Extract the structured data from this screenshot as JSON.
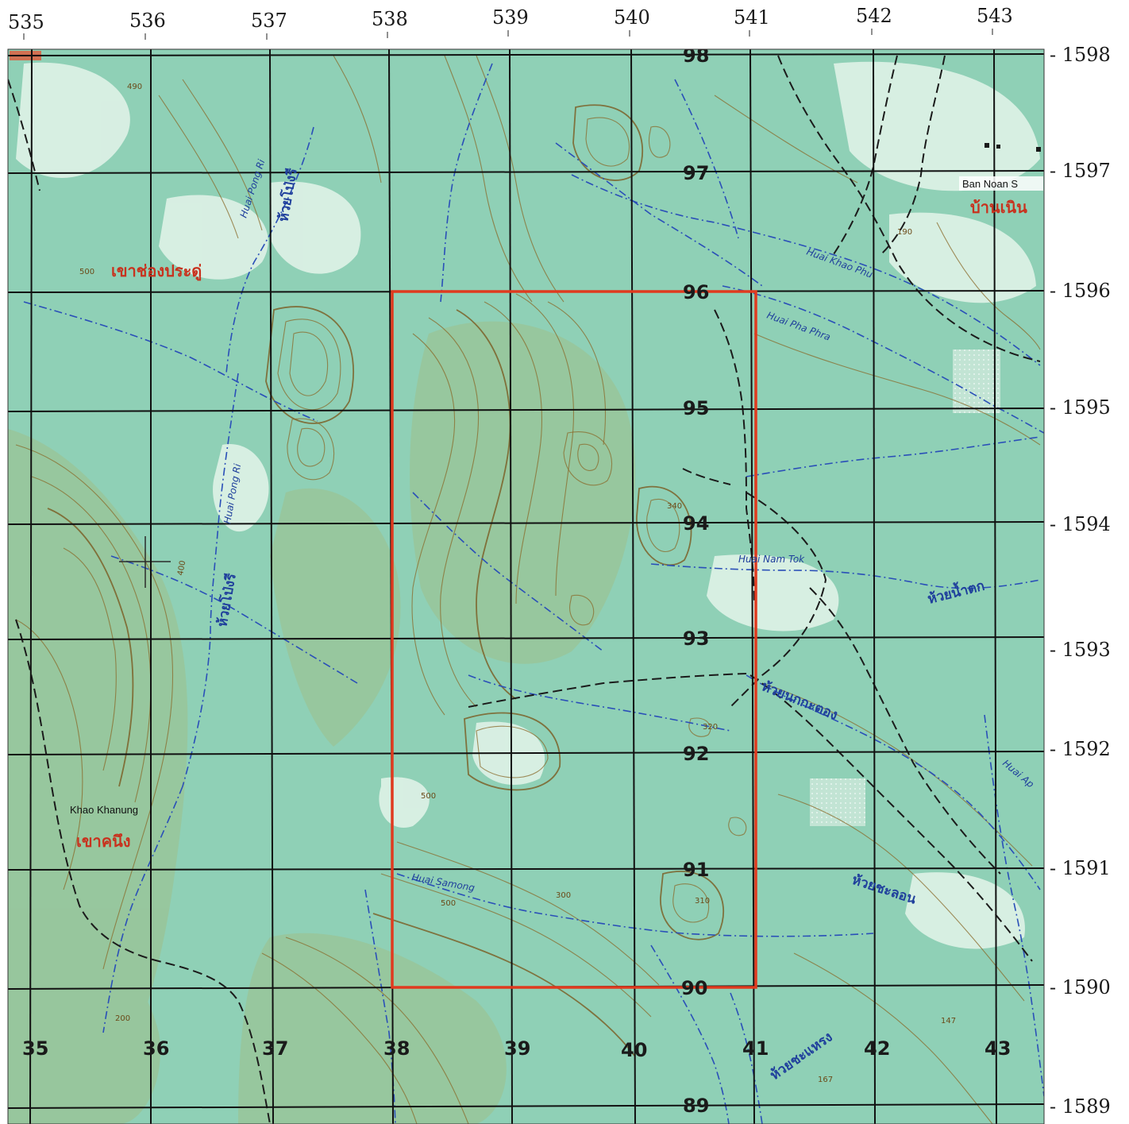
{
  "map": {
    "eastings_top": [
      "535",
      "536",
      "537",
      "538",
      "539",
      "540",
      "541",
      "542",
      "543"
    ],
    "eastings_inner": [
      "35",
      "36",
      "37",
      "38",
      "39",
      "40",
      "41",
      "42",
      "43"
    ],
    "northings_right": [
      "- 1598",
      "- 1597",
      "- 1596",
      "- 1595",
      "- 1594",
      "- 1593",
      "- 1592",
      "- 1591",
      "- 1590",
      "- 1589"
    ],
    "northings_inner": [
      "98",
      "97",
      "96",
      "95",
      "94",
      "93",
      "92",
      "91",
      "90",
      "89"
    ],
    "places": {
      "ban_noan_en": "Ban Noan S",
      "ban_noan_th": "บ้านเนิน",
      "khao_khanung_en": "Khao Khanung",
      "khao_khanung_th": "เขาคนึง",
      "nw_hill_th": "เขาช่องประดู่"
    },
    "streams": {
      "huai_pong_ri_top_en": "Huai Pong Ri",
      "huai_pong_ri_top_th": "ห้วยโป่งรี",
      "huai_pong_ri_mid_en": "Huai Pong Ri",
      "huai_pong_ri_mid_th": "ห้วยโป่งรี",
      "huai_khao_phu_en": "Huai Khao Phu",
      "huai_pha_phra_en": "Huai Pha Phra",
      "huai_nam_tok_en": "Huai Nam Tok",
      "huai_nam_tok_th": "ห้วยน้ำตก",
      "huai_nok_krathong_th": "ห้วยนกกะตอง",
      "huai_samong_en": "Huai Samong",
      "huai_chalon_th": "ห้วยชะลอน",
      "huai_east_en": "Huai Ap",
      "huai_chalon_south_th": "ห้วยชะแหรง"
    },
    "spot_heights": [
      "490",
      "500",
      "400",
      "500",
      "300",
      "320",
      "500",
      "200",
      "190",
      "147",
      "167",
      "310",
      "340"
    ],
    "colors": {
      "terrain_base": "#8fd0b6",
      "terrain_light": "#dff2e7",
      "highland": "#9fbf8a",
      "contour": "#8a6a2a",
      "stream": "#2a4fb8",
      "grid": "#111111",
      "study_area": "#e03a1f",
      "thai_name": "#c8321e"
    }
  }
}
